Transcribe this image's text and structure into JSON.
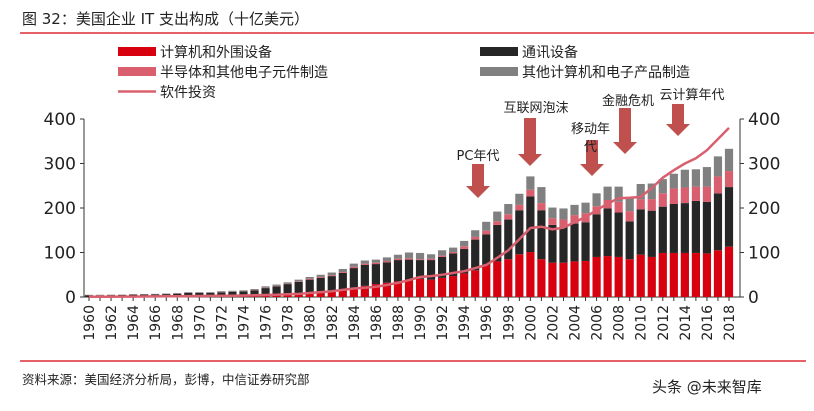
{
  "figure_title": "图 32：美国企业 IT 支出构成（十亿美元）",
  "source": "资料来源：美国经济分析局，彭博，中信证券研究部",
  "watermark": "头条 @未来智库",
  "chart_data": {
    "type": "bar",
    "stacked": true,
    "title": "",
    "xlabel": "",
    "ylabel": "",
    "ylim": [
      0,
      400
    ],
    "y2lim": [
      0,
      400
    ],
    "yticks": [
      0,
      100,
      200,
      300,
      400
    ],
    "grid": false,
    "legend_position": "top",
    "categories": [
      "1960",
      "1961",
      "1962",
      "1963",
      "1964",
      "1965",
      "1966",
      "1967",
      "1968",
      "1969",
      "1970",
      "1971",
      "1972",
      "1973",
      "1974",
      "1975",
      "1976",
      "1977",
      "1978",
      "1979",
      "1980",
      "1981",
      "1982",
      "1983",
      "1984",
      "1985",
      "1986",
      "1987",
      "1988",
      "1989",
      "1990",
      "1991",
      "1992",
      "1993",
      "1994",
      "1995",
      "1996",
      "1997",
      "1998",
      "1999",
      "2000",
      "2001",
      "2002",
      "2003",
      "2004",
      "2005",
      "2006",
      "2007",
      "2008",
      "2009",
      "2010",
      "2011",
      "2012",
      "2013",
      "2014",
      "2015",
      "2016",
      "2017",
      "2018"
    ],
    "series": [
      {
        "name": "计算机和外围设备",
        "kind": "bar",
        "color": "#d7000f",
        "values": [
          0.5,
          0.5,
          0.5,
          0.6,
          0.7,
          0.8,
          0.9,
          1,
          1,
          1.5,
          1.5,
          1.5,
          2,
          2,
          2.5,
          3,
          4,
          5,
          6,
          8,
          10,
          12,
          14,
          17,
          21,
          25,
          29,
          32,
          35,
          38,
          41,
          39,
          43,
          47,
          53,
          60,
          72,
          80,
          85,
          96,
          101,
          85,
          77,
          77,
          80,
          81,
          90,
          92,
          90,
          85,
          95,
          90,
          99,
          99,
          99,
          99,
          98,
          105,
          113
        ]
      },
      {
        "name": "通讯设备",
        "kind": "bar",
        "color": "#262626",
        "values": [
          3.5,
          3.5,
          3.7,
          3.8,
          4.5,
          4.6,
          4.8,
          5.5,
          6,
          7.5,
          7.5,
          7.5,
          8.5,
          9.5,
          10,
          12,
          16,
          19,
          23,
          26,
          29,
          31,
          33,
          37,
          44,
          47,
          45,
          46,
          48,
          46,
          42,
          44,
          47,
          51,
          55,
          69,
          69,
          82,
          89,
          99,
          125,
          110,
          85,
          81,
          85,
          87,
          96,
          107,
          100,
          85,
          102,
          104,
          104,
          110,
          112,
          117,
          116,
          128,
          134
        ]
      },
      {
        "name": "半导体和其他电子元件制造",
        "kind": "bar",
        "color": "#d95f6e",
        "values": [
          0.3,
          0.3,
          0.3,
          0.3,
          0.4,
          0.4,
          0.4,
          0.5,
          0.5,
          0.5,
          0.5,
          0.5,
          0.5,
          0.5,
          0.5,
          1,
          1,
          1,
          1,
          1,
          2,
          2,
          2,
          2,
          3,
          3,
          3,
          3,
          3,
          3,
          2,
          3,
          3,
          3,
          6,
          6,
          8,
          8,
          12,
          12,
          15,
          16,
          15,
          16,
          19,
          20,
          18,
          19,
          24,
          23,
          23,
          26,
          30,
          35,
          35,
          32,
          34,
          38,
          36
        ]
      },
      {
        "name": "其他计算机和电子产品制造",
        "kind": "bar",
        "color": "#808080",
        "values": [
          0.7,
          0.7,
          0.7,
          0.8,
          0.9,
          1,
          1,
          1,
          1.5,
          1.5,
          1.5,
          1.5,
          2,
          2,
          2,
          2,
          3,
          3,
          3,
          4,
          4,
          5,
          6,
          7,
          7,
          7,
          7,
          8,
          9,
          13,
          14,
          10,
          12,
          10,
          12,
          15,
          20,
          22,
          23,
          25,
          30,
          36,
          24,
          25,
          23,
          24,
          29,
          30,
          34,
          31,
          34,
          35,
          32,
          33,
          40,
          39,
          44,
          45,
          50
        ]
      },
      {
        "name": "软件投资",
        "kind": "line",
        "color": "#d9606e",
        "values": [
          0.5,
          0.6,
          0.7,
          0.8,
          1,
          1.2,
          1.4,
          1.6,
          1.8,
          2,
          2.2,
          2.4,
          2.6,
          3,
          3.4,
          4,
          4.5,
          5,
          6,
          7,
          9,
          11,
          13,
          16,
          19,
          21,
          23,
          27,
          32,
          38,
          45,
          47,
          50,
          54,
          58,
          65,
          72,
          88,
          105,
          130,
          155,
          158,
          152,
          156,
          168,
          180,
          195,
          210,
          222,
          223,
          225,
          245,
          268,
          285,
          300,
          312,
          330,
          355,
          380
        ]
      }
    ],
    "legend_order": [
      0,
      1,
      2,
      3,
      4
    ],
    "annotations": [
      {
        "text": "PC年代",
        "year": "1996",
        "arrow": "down",
        "color": "#c0504d"
      },
      {
        "text": "互联网泡沫",
        "year": "2001",
        "arrow": "down",
        "color": "#c0504d"
      },
      {
        "text": "移动年代",
        "year": "2006",
        "arrow": "down",
        "color": "#c0504d"
      },
      {
        "text": "金融危机",
        "year": "2008",
        "arrow": "down",
        "color": "#c0504d"
      },
      {
        "text": "云计算年代",
        "year": "2013",
        "arrow": "down",
        "color": "#c0504d"
      }
    ],
    "accent_color": "#d7000f"
  }
}
